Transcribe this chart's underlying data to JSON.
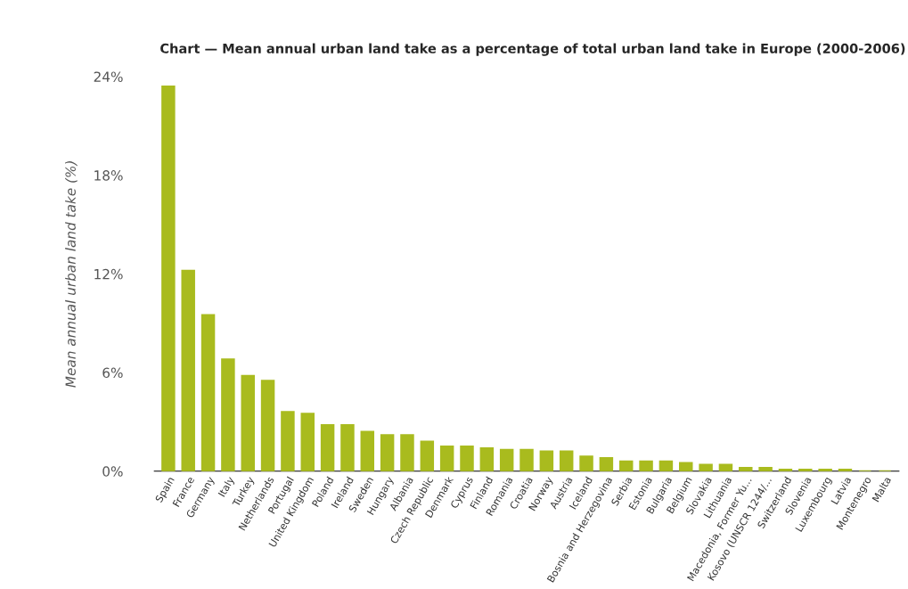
{
  "chart_data": {
    "type": "bar",
    "title": "Chart — Mean annual urban land take as a percentage of total urban land take in Europe (2000-2006)",
    "ylabel": "Mean annual urban land take (%)",
    "categories": [
      "Spain",
      "France",
      "Germany",
      "Italy",
      "Turkey",
      "Netherlands",
      "Portugal",
      "United Kingdom",
      "Poland",
      "Ireland",
      "Sweden",
      "Hungary",
      "Albania",
      "Czech Republic",
      "Denmark",
      "Cyprus",
      "Finland",
      "Romania",
      "Croatia",
      "Norway",
      "Austria",
      "Iceland",
      "Bosnia and Herzegovina",
      "Serbia",
      "Estonia",
      "Bulgaria",
      "Belgium",
      "Slovakia",
      "Lithuania",
      "Macedonia, Former Yu...",
      "Kosovo (UNSCR 1244/...",
      "Switzerland",
      "Slovenia",
      "Luxembourg",
      "Latvia",
      "Montenegro",
      "Malta"
    ],
    "values": [
      23.4,
      12.2,
      9.5,
      6.8,
      5.8,
      5.5,
      3.6,
      3.5,
      2.8,
      2.8,
      2.4,
      2.2,
      2.2,
      1.8,
      1.5,
      1.5,
      1.4,
      1.3,
      1.3,
      1.2,
      1.2,
      0.9,
      0.8,
      0.6,
      0.6,
      0.6,
      0.5,
      0.4,
      0.4,
      0.2,
      0.2,
      0.1,
      0.1,
      0.1,
      0.1,
      0,
      0
    ],
    "color": "#a9bb1e",
    "ylim": [
      0,
      24
    ],
    "yticks": [
      {
        "value": 0,
        "label": "0%"
      },
      {
        "value": 6,
        "label": "6%"
      },
      {
        "value": 12,
        "label": "12%"
      },
      {
        "value": 18,
        "label": "18%"
      },
      {
        "value": 24,
        "label": "24%"
      }
    ],
    "grid": false
  }
}
